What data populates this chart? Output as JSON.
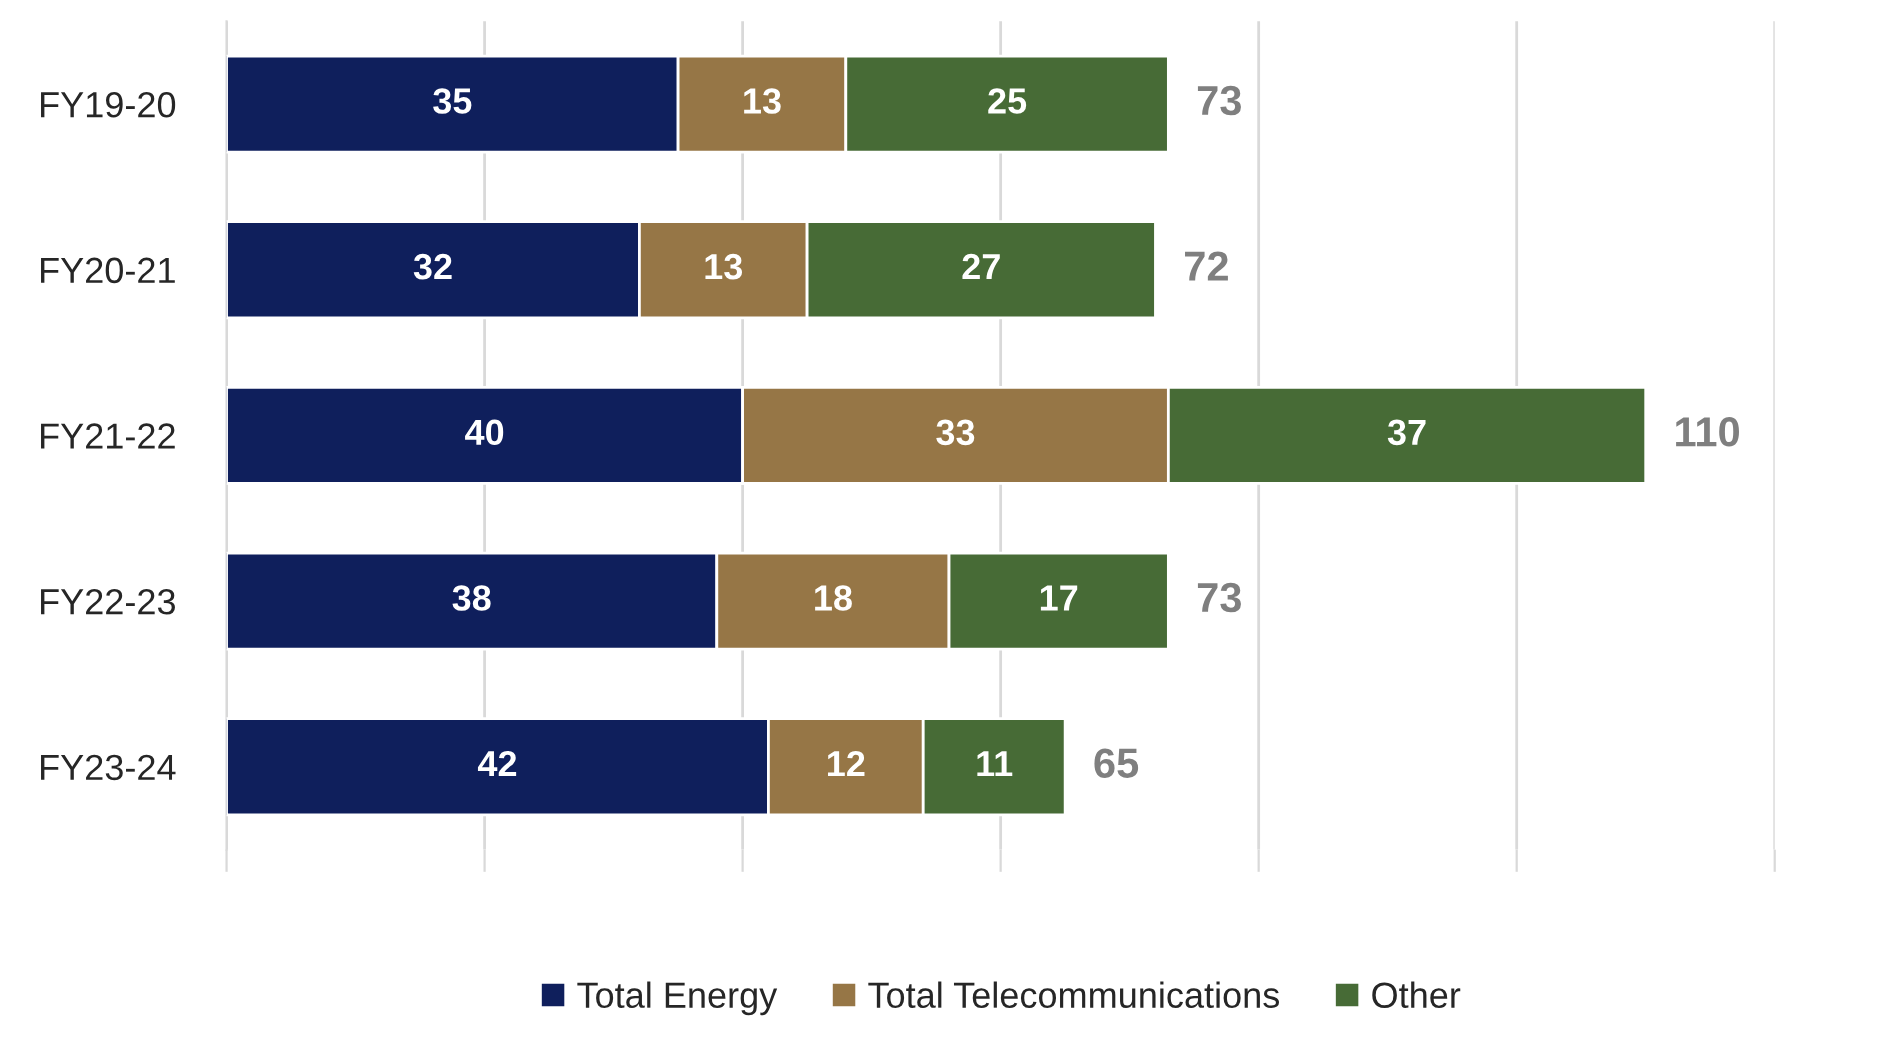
{
  "chart_data": {
    "type": "bar",
    "orientation": "horizontal",
    "stacked": true,
    "categories": [
      "FY19-20",
      "FY20-21",
      "FY21-22",
      "FY22-23",
      "FY23-24"
    ],
    "series": [
      {
        "name": "Total Energy",
        "color": "#0f1f5c",
        "values": [
          35,
          32,
          40,
          38,
          42
        ]
      },
      {
        "name": "Total Telecommunications",
        "color": "#967646",
        "values": [
          13,
          13,
          33,
          18,
          12
        ]
      },
      {
        "name": "Other",
        "color": "#476b36",
        "values": [
          25,
          27,
          37,
          17,
          11
        ]
      }
    ],
    "totals": [
      "73",
      "72",
      "110",
      "73",
      "65"
    ],
    "data_labels": true,
    "xlim": [
      0,
      120
    ],
    "xticks": [
      {
        "value": 0,
        "label": null
      },
      {
        "value": 20,
        "label": null
      },
      {
        "value": 40,
        "label": null
      },
      {
        "value": 60,
        "label": null
      },
      {
        "value": 80,
        "label": null
      },
      {
        "value": 100,
        "label": null
      },
      {
        "value": 120,
        "label": null
      }
    ],
    "grid": "x",
    "legend": "bottom",
    "tick_labels": "y"
  }
}
